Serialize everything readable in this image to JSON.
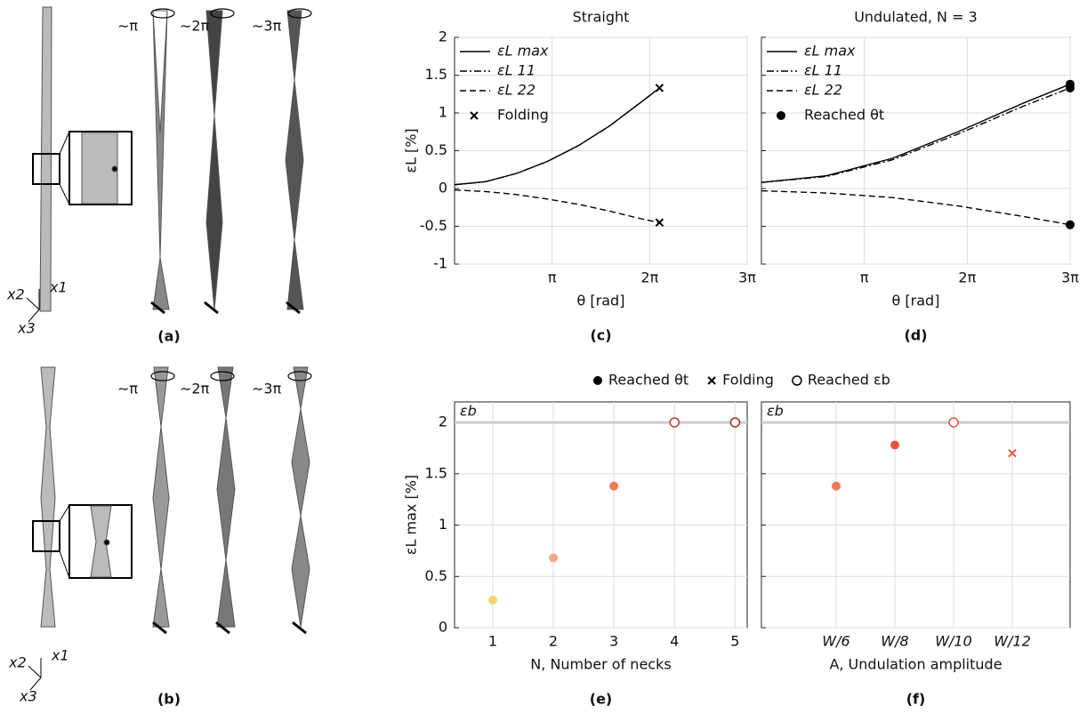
{
  "chart_data": [
    {
      "type": "line",
      "label": "(c)",
      "title": "Straight",
      "xlabel": "θ [rad]",
      "ylabel": "εL [%]",
      "x": [
        0,
        1,
        2,
        3,
        4,
        5,
        6,
        6.6
      ],
      "xlim": [
        0,
        9.4248
      ],
      "xticks": [
        {
          "value": 3.1416,
          "label": "π"
        },
        {
          "value": 6.2832,
          "label": "2π"
        },
        {
          "value": 9.4248,
          "label": "3π"
        }
      ],
      "ylim": [
        -1,
        2
      ],
      "yticks": [
        -1,
        -0.5,
        0,
        0.5,
        1,
        1.5,
        2
      ],
      "ytick_labels": true,
      "grid": true,
      "series": [
        {
          "name": "εL max",
          "style": "solid",
          "color": "#000000",
          "values": [
            0.05,
            0.09,
            0.2,
            0.36,
            0.57,
            0.83,
            1.14,
            1.33
          ]
        },
        {
          "name": "εL 11",
          "style": "dashdot",
          "color": "#000000",
          "values": [
            0.05,
            0.09,
            0.2,
            0.36,
            0.57,
            0.83,
            1.14,
            1.33
          ]
        },
        {
          "name": "εL 22",
          "style": "dashed",
          "color": "#000000",
          "values": [
            -0.02,
            -0.04,
            -0.08,
            -0.14,
            -0.21,
            -0.3,
            -0.4,
            -0.45
          ]
        },
        {
          "name": "Folding",
          "style": "x",
          "color": "#000000",
          "x": [
            6.6,
            6.6
          ],
          "values": [
            1.33,
            -0.45
          ]
        }
      ]
    },
    {
      "type": "line",
      "label": "(d)",
      "title": "Undulated, N = 3",
      "xlabel": "θ [rad]",
      "x": [
        0,
        2,
        4,
        6,
        8,
        9.4248
      ],
      "xlim": [
        0,
        9.4248
      ],
      "xticks": [
        {
          "value": 3.1416,
          "label": "π"
        },
        {
          "value": 6.2832,
          "label": "2π"
        },
        {
          "value": 9.4248,
          "label": "3π"
        }
      ],
      "ylim": [
        -1,
        2
      ],
      "yticks": [
        -1,
        -0.5,
        0,
        0.5,
        1,
        1.5,
        2
      ],
      "ytick_labels": false,
      "grid": true,
      "series": [
        {
          "name": "εL max",
          "style": "solid",
          "color": "#000000",
          "values": [
            0.08,
            0.17,
            0.4,
            0.75,
            1.13,
            1.38
          ]
        },
        {
          "name": "εL 11",
          "style": "dashdot",
          "color": "#000000",
          "values": [
            0.08,
            0.16,
            0.38,
            0.72,
            1.09,
            1.33
          ]
        },
        {
          "name": "εL 22",
          "style": "dashed",
          "color": "#000000",
          "values": [
            -0.03,
            -0.06,
            -0.12,
            -0.23,
            -0.37,
            -0.48
          ]
        },
        {
          "name": "Reached θt",
          "style": "dot",
          "color": "#000000",
          "x": [
            9.4248,
            9.4248,
            9.4248
          ],
          "values": [
            1.38,
            1.33,
            -0.48
          ]
        }
      ]
    },
    {
      "type": "scatter",
      "label": "(e)",
      "xlabel": "N, Number of necks",
      "ylabel": "εL max [%]",
      "x": [
        1,
        2,
        3,
        4,
        5
      ],
      "values": [
        0.27,
        0.68,
        1.38,
        2,
        2
      ],
      "colors": [
        "#f7d36b",
        "#f4a98a",
        "#f07a5a",
        "#c0392b",
        "#a52a2a"
      ],
      "markers": [
        "filled",
        "filled",
        "filled",
        "open",
        "open"
      ],
      "xlim": [
        0.37,
        5.2
      ],
      "xticks": [
        1,
        2,
        3,
        4,
        5
      ],
      "ylim": [
        0,
        2.2
      ],
      "yticks": [
        0,
        0.5,
        1,
        1.5,
        2
      ],
      "ytick_labels": true,
      "grid": true,
      "reference_line": {
        "value": 2,
        "label": "εb"
      }
    },
    {
      "type": "dot",
      "label": "(f)",
      "xlabel": "A, Undulation amplitude",
      "categories": [
        "W/6",
        "W/8",
        "W/10",
        "W/12"
      ],
      "values": [
        1.38,
        1.78,
        2,
        1.7
      ],
      "colors": [
        "#f07a5a",
        "#e8553f",
        "#e8553f",
        "#e8553f"
      ],
      "markers": [
        "filled",
        "filled",
        "open",
        "x"
      ],
      "ylim": [
        0,
        2.2
      ],
      "yticks": [
        0,
        0.5,
        1,
        1.5,
        2
      ],
      "ytick_labels": false,
      "grid": true,
      "reference_line": {
        "value": 2,
        "label": "εb"
      }
    }
  ],
  "shared_legend": [
    {
      "label": "Reached θt",
      "marker": "filled"
    },
    {
      "label": "Folding",
      "marker": "x"
    },
    {
      "label": "Reached εb",
      "marker": "open"
    }
  ],
  "illustrations": [
    {
      "label": "(a)",
      "twists": [
        "∼π",
        "∼2π",
        "∼3π"
      ],
      "axes": [
        "x1",
        "x2",
        "x3"
      ]
    },
    {
      "label": "(b)",
      "twists": [
        "∼π",
        "∼2π",
        "∼3π"
      ],
      "axes": [
        "x1",
        "x2",
        "x3"
      ]
    }
  ]
}
